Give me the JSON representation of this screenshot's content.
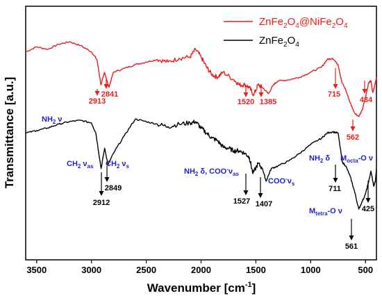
{
  "chart_data": {
    "type": "line",
    "xlabel": "Wavenumber [cm",
    "xlabel_sup": "-1",
    "xlabel_end": "]",
    "ylabel": "Transmittance [a.u.]",
    "xlim": [
      3600,
      400
    ],
    "x_reversed": true,
    "x_ticks": [
      3500,
      3000,
      2500,
      2000,
      1500,
      1000,
      500
    ],
    "y_ticks_labeled": false,
    "grid": false,
    "legend_position": "top-right",
    "series": [
      {
        "name": "ZnFe2O4@NiFe2O4",
        "color": "#ee1c1c",
        "points": [
          [
            3600,
            0.82
          ],
          [
            3500,
            0.84
          ],
          [
            3400,
            0.83
          ],
          [
            3300,
            0.85
          ],
          [
            3200,
            0.86
          ],
          [
            3100,
            0.845
          ],
          [
            3000,
            0.82
          ],
          [
            2950,
            0.79
          ],
          [
            2913,
            0.69
          ],
          [
            2880,
            0.74
          ],
          [
            2841,
            0.68
          ],
          [
            2800,
            0.74
          ],
          [
            2700,
            0.755
          ],
          [
            2600,
            0.77
          ],
          [
            2500,
            0.78
          ],
          [
            2400,
            0.79
          ],
          [
            2300,
            0.78
          ],
          [
            2200,
            0.795
          ],
          [
            2100,
            0.8
          ],
          [
            2050,
            0.83
          ],
          [
            2000,
            0.8
          ],
          [
            1950,
            0.76
          ],
          [
            1900,
            0.73
          ],
          [
            1850,
            0.72
          ],
          [
            1800,
            0.74
          ],
          [
            1700,
            0.71
          ],
          [
            1650,
            0.69
          ],
          [
            1600,
            0.69
          ],
          [
            1560,
            0.68
          ],
          [
            1520,
            0.65
          ],
          [
            1480,
            0.69
          ],
          [
            1440,
            0.68
          ],
          [
            1385,
            0.655
          ],
          [
            1340,
            0.69
          ],
          [
            1300,
            0.705
          ],
          [
            1200,
            0.71
          ],
          [
            1100,
            0.72
          ],
          [
            1000,
            0.74
          ],
          [
            900,
            0.76
          ],
          [
            850,
            0.79
          ],
          [
            800,
            0.795
          ],
          [
            750,
            0.77
          ],
          [
            715,
            0.7
          ],
          [
            680,
            0.67
          ],
          [
            640,
            0.62
          ],
          [
            600,
            0.58
          ],
          [
            562,
            0.565
          ],
          [
            530,
            0.59
          ],
          [
            500,
            0.64
          ],
          [
            470,
            0.7
          ],
          [
            450,
            0.705
          ],
          [
            434,
            0.66
          ],
          [
            420,
            0.68
          ],
          [
            400,
            0.72
          ]
        ]
      },
      {
        "name": "ZnFe2O4",
        "color": "#000000",
        "points": [
          [
            3600,
            0.5
          ],
          [
            3500,
            0.51
          ],
          [
            3400,
            0.52
          ],
          [
            3300,
            0.535
          ],
          [
            3200,
            0.545
          ],
          [
            3100,
            0.55
          ],
          [
            3000,
            0.54
          ],
          [
            2960,
            0.5
          ],
          [
            2912,
            0.36
          ],
          [
            2880,
            0.44
          ],
          [
            2849,
            0.375
          ],
          [
            2800,
            0.42
          ],
          [
            2700,
            0.49
          ],
          [
            2600,
            0.555
          ],
          [
            2500,
            0.545
          ],
          [
            2400,
            0.535
          ],
          [
            2300,
            0.525
          ],
          [
            2200,
            0.535
          ],
          [
            2100,
            0.54
          ],
          [
            2050,
            0.545
          ],
          [
            2000,
            0.52
          ],
          [
            1950,
            0.5
          ],
          [
            1900,
            0.48
          ],
          [
            1850,
            0.47
          ],
          [
            1800,
            0.445
          ],
          [
            1750,
            0.44
          ],
          [
            1700,
            0.43
          ],
          [
            1650,
            0.43
          ],
          [
            1600,
            0.42
          ],
          [
            1560,
            0.405
          ],
          [
            1527,
            0.34
          ],
          [
            1480,
            0.38
          ],
          [
            1440,
            0.36
          ],
          [
            1407,
            0.31
          ],
          [
            1360,
            0.36
          ],
          [
            1300,
            0.37
          ],
          [
            1200,
            0.39
          ],
          [
            1100,
            0.42
          ],
          [
            1000,
            0.455
          ],
          [
            900,
            0.48
          ],
          [
            850,
            0.5
          ],
          [
            800,
            0.505
          ],
          [
            750,
            0.5
          ],
          [
            711,
            0.385
          ],
          [
            680,
            0.37
          ],
          [
            640,
            0.33
          ],
          [
            600,
            0.27
          ],
          [
            561,
            0.2
          ],
          [
            530,
            0.23
          ],
          [
            500,
            0.26
          ],
          [
            470,
            0.31
          ],
          [
            450,
            0.35
          ],
          [
            425,
            0.29
          ],
          [
            410,
            0.31
          ],
          [
            400,
            0.36
          ]
        ]
      }
    ],
    "red_peak_labels": [
      "2913",
      "2841",
      "1520",
      "1385",
      "715",
      "562",
      "434"
    ],
    "black_peak_labels": [
      "2912",
      "2849",
      "1527",
      "1407",
      "711",
      "561",
      "425"
    ],
    "assignments": {
      "nh2_nu": "NH",
      "ch2_as": "CH",
      "ch2_s": "CH",
      "nh2_delta_coo": "NH",
      "coo_s": "COO",
      "nh2_delta": "NH",
      "m_octa": "M",
      "m_tetra": "M"
    }
  }
}
